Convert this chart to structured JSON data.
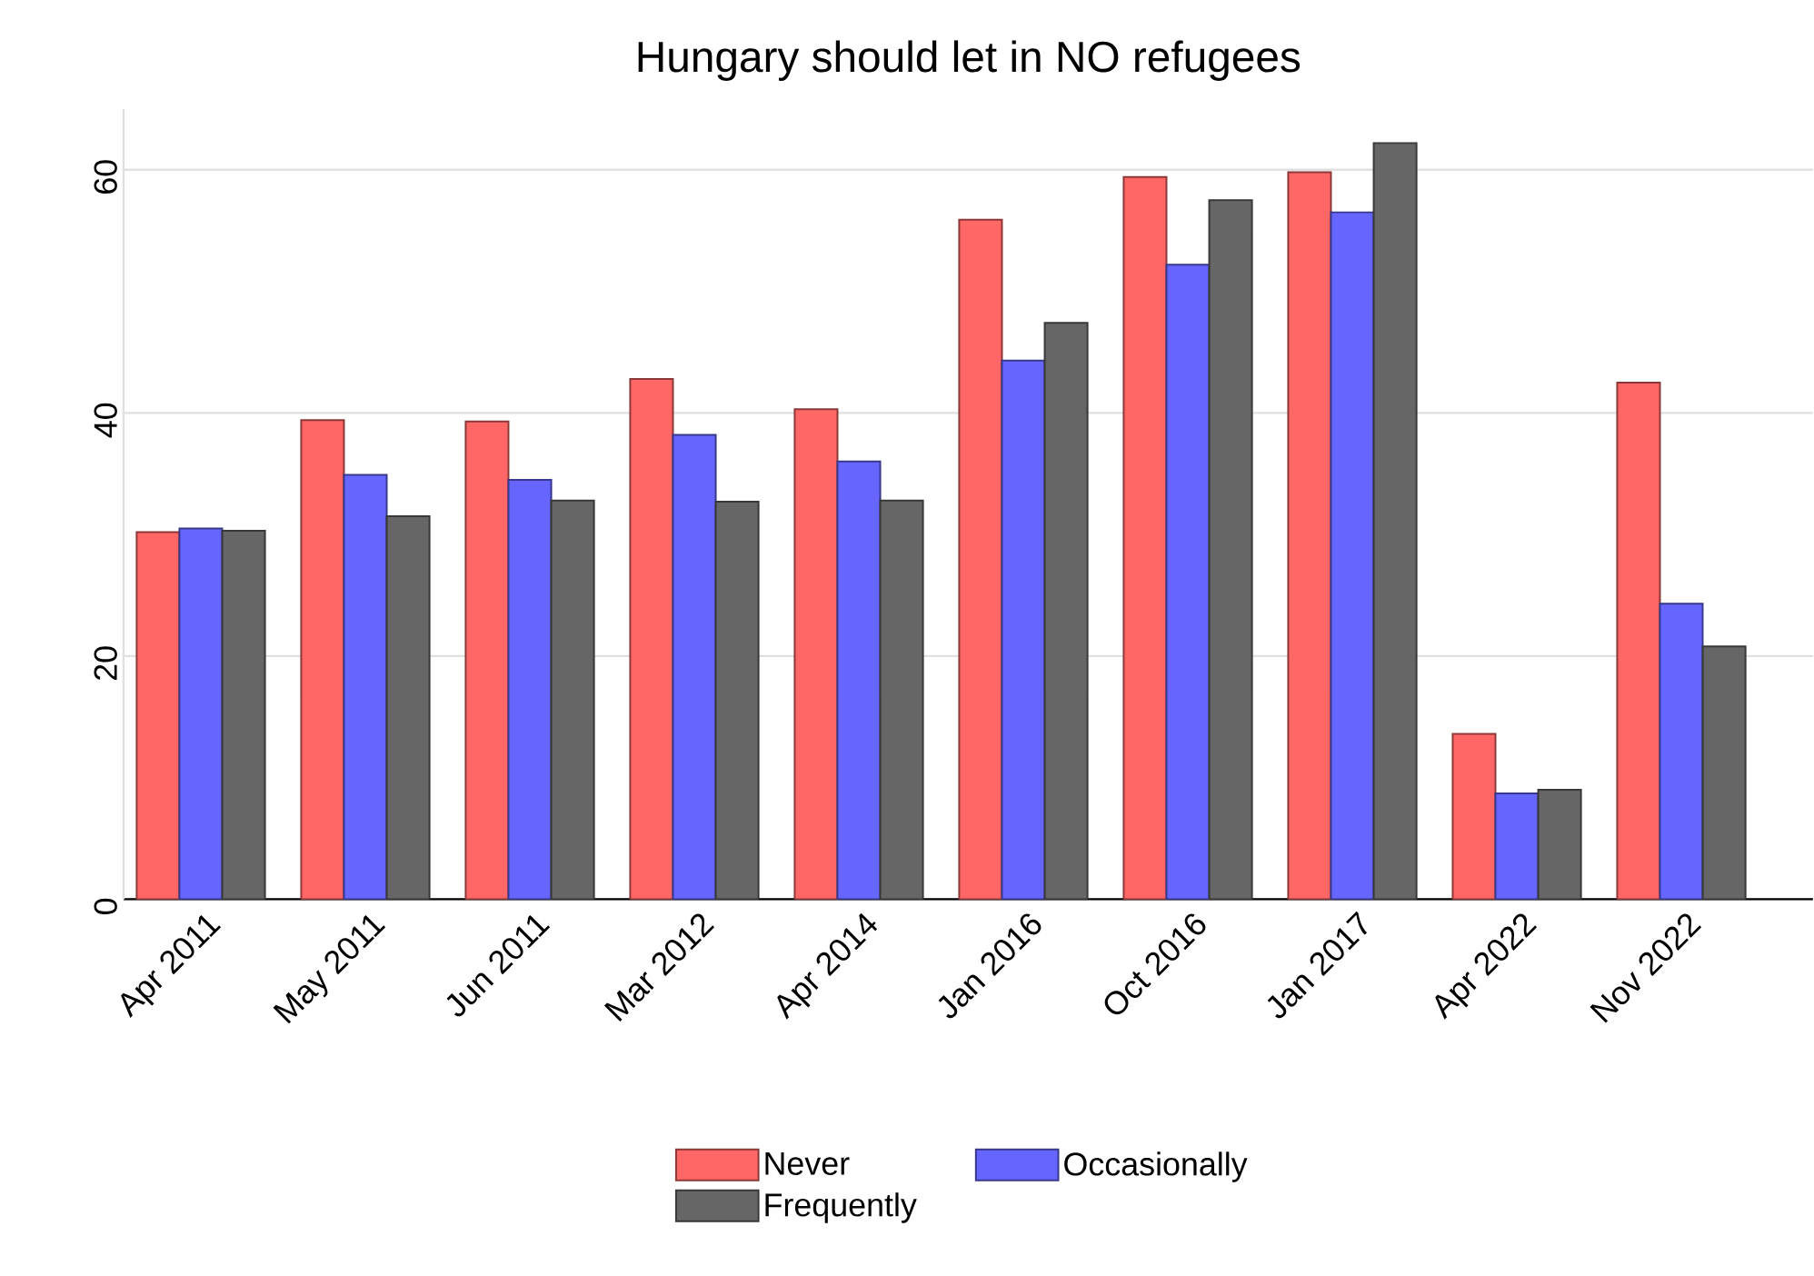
{
  "chart_data": {
    "type": "bar",
    "title": "Hungary should let in NO refugees",
    "categories": [
      "Apr 2011",
      "May 2011",
      "Jun 2011",
      "Mar 2012",
      "Apr 2014",
      "Jan 2016",
      "Oct 2016",
      "Jan 2017",
      "Apr 2022",
      "Nov 2022"
    ],
    "series": [
      {
        "name": "Never",
        "color": "#ff6666",
        "values": [
          30.2,
          39.4,
          39.3,
          42.8,
          40.3,
          55.9,
          59.4,
          59.8,
          13.6,
          42.5
        ]
      },
      {
        "name": "Occasionally",
        "color": "#6666ff",
        "values": [
          30.5,
          34.9,
          34.5,
          38.2,
          36.0,
          44.3,
          52.2,
          56.5,
          8.7,
          24.3
        ]
      },
      {
        "name": "Frequently",
        "color": "#666666",
        "values": [
          30.3,
          31.5,
          32.8,
          32.7,
          32.8,
          47.4,
          57.5,
          62.2,
          9.0,
          20.8
        ]
      }
    ],
    "ylim": [
      0,
      65
    ],
    "yticks": [
      0,
      20,
      40,
      60
    ],
    "grid": "y",
    "legend": "bottom"
  }
}
